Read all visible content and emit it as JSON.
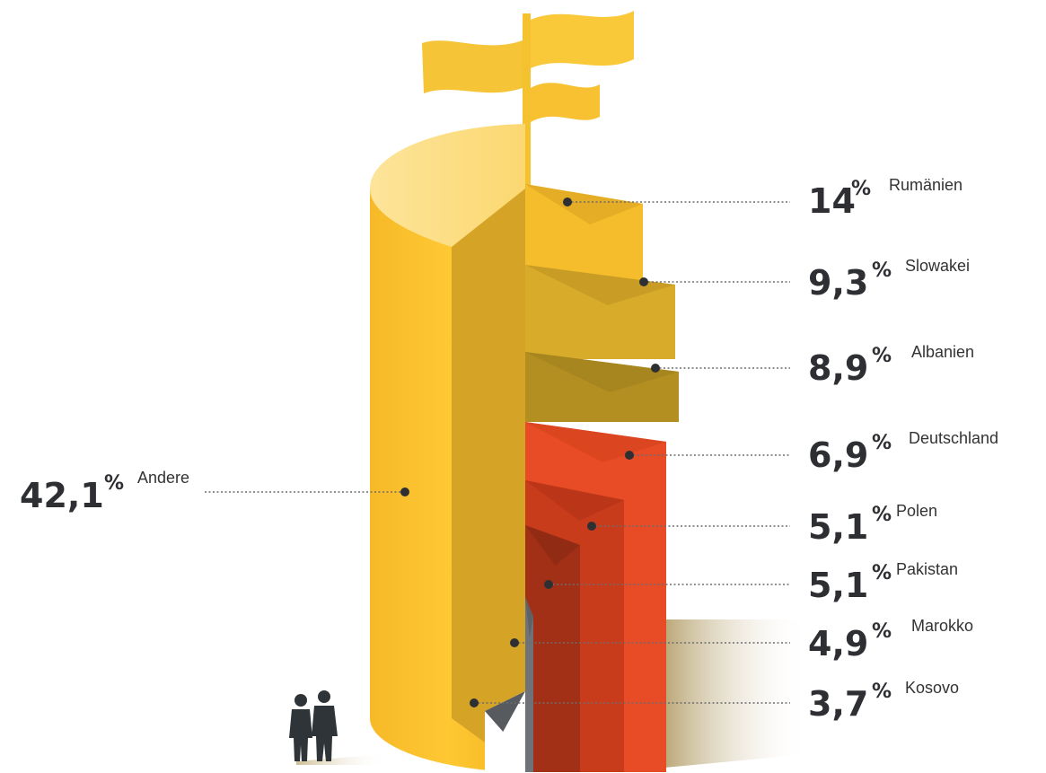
{
  "chart_data": {
    "type": "pie",
    "title": "",
    "categories": [
      "Rumänien",
      "Slowakei",
      "Albanien",
      "Deutschland",
      "Polen",
      "Pakistan",
      "Marokko",
      "Kosovo",
      "Andere"
    ],
    "values": [
      14,
      9.3,
      8.9,
      6.9,
      5.1,
      5.1,
      4.9,
      3.7,
      42.1
    ],
    "value_labels": [
      "14",
      "9,3",
      "8,9",
      "6,9",
      "5,1",
      "5,1",
      "4,9",
      "3,7",
      "42,1"
    ],
    "unit": "%",
    "colors": [
      "#f6bf2b",
      "#d6a92a",
      "#b08d22",
      "#e84d26",
      "#c63a1a",
      "#9f2e16",
      "#6b6e74",
      "#ffffff",
      "#fcc22e"
    ]
  }
}
